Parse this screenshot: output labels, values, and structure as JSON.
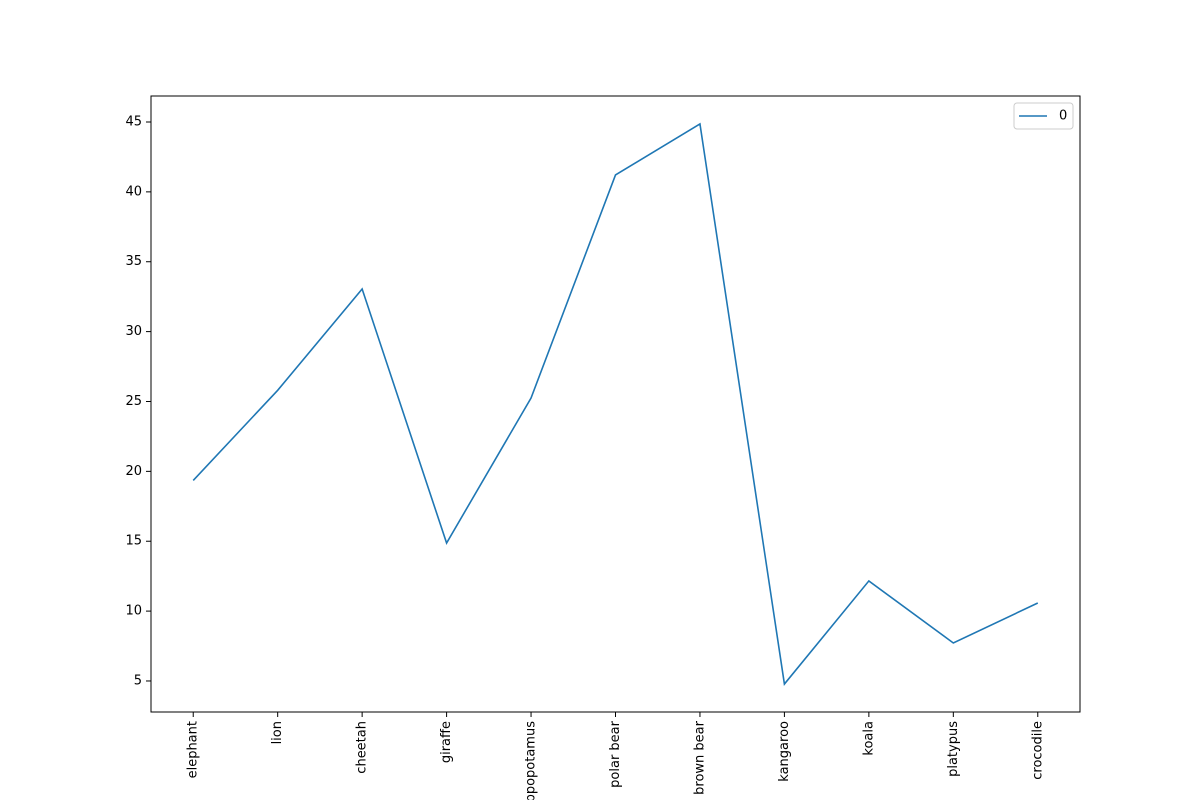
{
  "chart_data": {
    "type": "line",
    "categories": [
      "elephant",
      "lion",
      "cheetah",
      "giraffe",
      "hippopotamus",
      "polar bear",
      "brown bear",
      "kangaroo",
      "koala",
      "platypus",
      "crocodile"
    ],
    "series": [
      {
        "name": "0",
        "color": "#1f77b4",
        "values": [
          19.35,
          25.8,
          33.05,
          14.87,
          25.25,
          41.21,
          44.86,
          4.78,
          12.16,
          7.72,
          10.58
        ]
      }
    ],
    "ylim": [
      2.78,
      46.86
    ],
    "yticks": [
      5,
      10,
      15,
      20,
      25,
      30,
      35,
      40,
      45
    ],
    "legend": "upper right",
    "grid": false
  }
}
